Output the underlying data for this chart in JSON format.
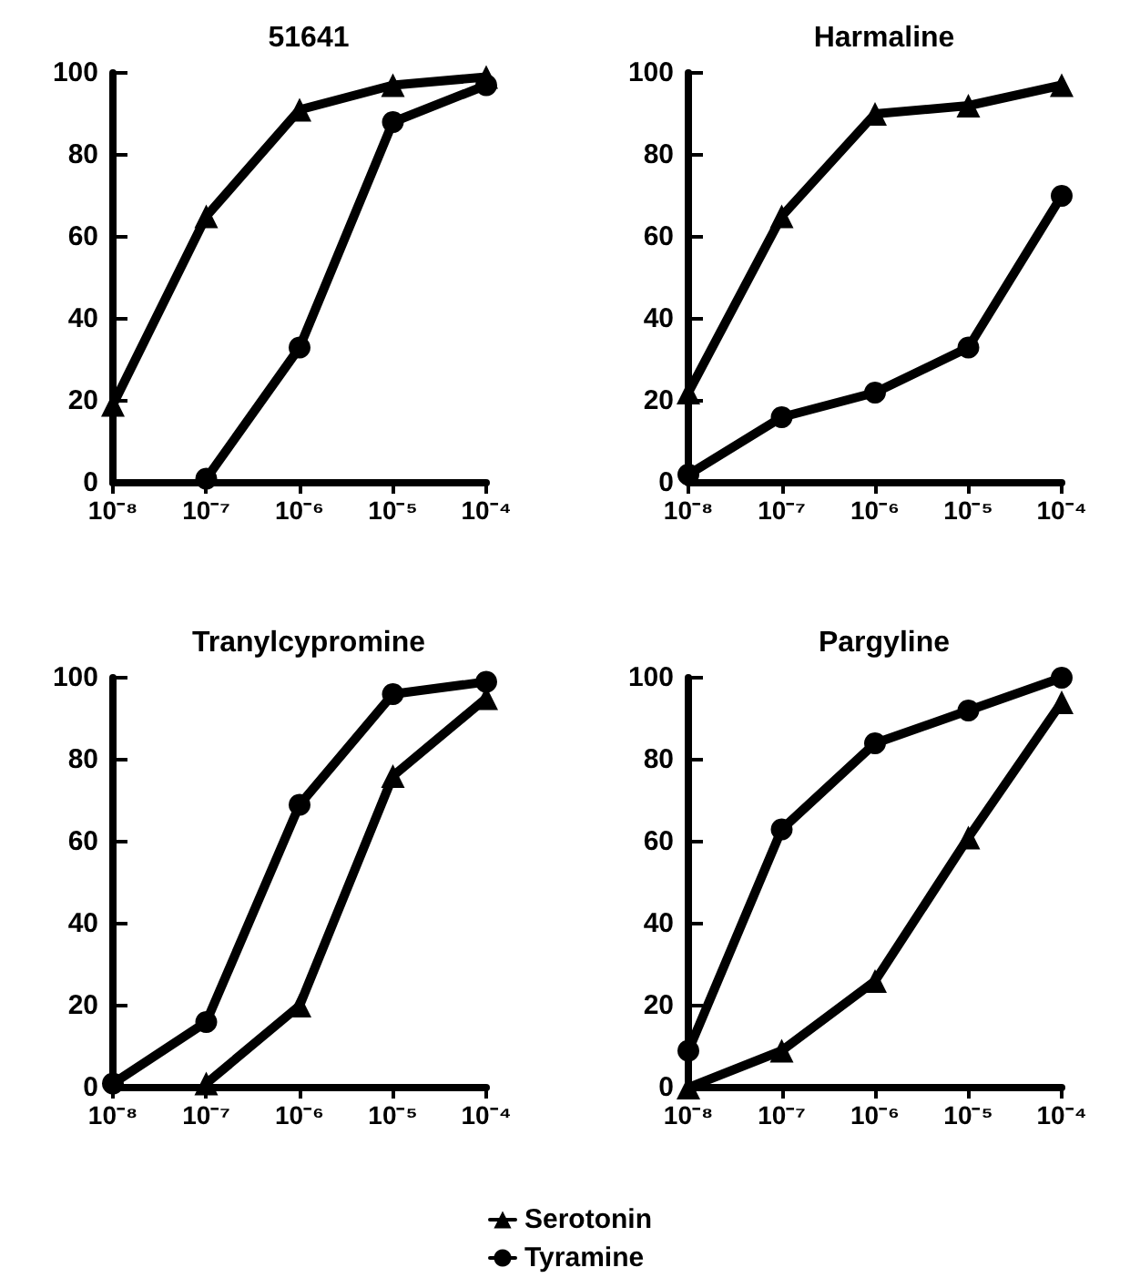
{
  "chart_data": [
    {
      "type": "line",
      "title": "51641",
      "xlim": [
        1e-08,
        0.0001
      ],
      "log": "x",
      "ylim": [
        0,
        100
      ],
      "yticks": [
        0,
        20,
        40,
        60,
        80,
        100
      ],
      "xticks": [
        {
          "value": 1e-08,
          "label": "10⁻⁸"
        },
        {
          "value": 1e-07,
          "label": "10⁻⁷"
        },
        {
          "value": 1e-06,
          "label": "10⁻⁶"
        },
        {
          "value": 1e-05,
          "label": "10⁻⁵"
        },
        {
          "value": 0.0001,
          "label": "10⁻⁴"
        }
      ],
      "grid": false,
      "legend": "bottom",
      "series": [
        {
          "name": "Serotonin",
          "color": "#000000",
          "marker": "triangle",
          "x": [
            1e-08,
            1e-07,
            1e-06,
            1e-05,
            0.0001
          ],
          "values": [
            19,
            65,
            91,
            97,
            99
          ]
        },
        {
          "name": "Tyramine",
          "color": "#000000",
          "marker": "circle",
          "x": [
            1e-07,
            1e-06,
            1e-05,
            0.0001
          ],
          "values": [
            1,
            33,
            88,
            97
          ]
        }
      ]
    },
    {
      "type": "line",
      "title": "Harmaline",
      "xlim": [
        1e-08,
        0.0001
      ],
      "log": "x",
      "ylim": [
        0,
        100
      ],
      "yticks": [
        0,
        20,
        40,
        60,
        80,
        100
      ],
      "xticks": [
        {
          "value": 1e-08,
          "label": "10⁻⁸"
        },
        {
          "value": 1e-07,
          "label": "10⁻⁷"
        },
        {
          "value": 1e-06,
          "label": "10⁻⁶"
        },
        {
          "value": 1e-05,
          "label": "10⁻⁵"
        },
        {
          "value": 0.0001,
          "label": "10⁻⁴"
        }
      ],
      "grid": false,
      "legend": "bottom",
      "series": [
        {
          "name": "Serotonin",
          "color": "#000000",
          "marker": "triangle",
          "x": [
            1e-08,
            1e-07,
            1e-06,
            1e-05,
            0.0001
          ],
          "values": [
            22,
            65,
            90,
            92,
            97
          ]
        },
        {
          "name": "Tyramine",
          "color": "#000000",
          "marker": "circle",
          "x": [
            1e-08,
            1e-07,
            1e-06,
            1e-05,
            0.0001
          ],
          "values": [
            2,
            16,
            22,
            33,
            70
          ]
        }
      ]
    },
    {
      "type": "line",
      "title": "Tranylcypromine",
      "xlim": [
        1e-08,
        0.0001
      ],
      "log": "x",
      "ylim": [
        0,
        100
      ],
      "yticks": [
        0,
        20,
        40,
        60,
        80,
        100
      ],
      "xticks": [
        {
          "value": 1e-08,
          "label": "10⁻⁸"
        },
        {
          "value": 1e-07,
          "label": "10⁻⁷"
        },
        {
          "value": 1e-06,
          "label": "10⁻⁶"
        },
        {
          "value": 1e-05,
          "label": "10⁻⁵"
        },
        {
          "value": 0.0001,
          "label": "10⁻⁴"
        }
      ],
      "grid": false,
      "legend": "bottom",
      "series": [
        {
          "name": "Serotonin",
          "color": "#000000",
          "marker": "triangle",
          "x": [
            1e-07,
            1e-06,
            1e-05,
            0.0001
          ],
          "values": [
            1,
            20,
            76,
            95
          ]
        },
        {
          "name": "Tyramine",
          "color": "#000000",
          "marker": "circle",
          "x": [
            1e-08,
            1e-07,
            1e-06,
            1e-05,
            0.0001
          ],
          "values": [
            1,
            16,
            69,
            96,
            99
          ]
        }
      ]
    },
    {
      "type": "line",
      "title": "Pargyline",
      "xlim": [
        1e-08,
        0.0001
      ],
      "log": "x",
      "ylim": [
        0,
        100
      ],
      "yticks": [
        0,
        20,
        40,
        60,
        80,
        100
      ],
      "xticks": [
        {
          "value": 1e-08,
          "label": "10⁻⁸"
        },
        {
          "value": 1e-07,
          "label": "10⁻⁷"
        },
        {
          "value": 1e-06,
          "label": "10⁻⁶"
        },
        {
          "value": 1e-05,
          "label": "10⁻⁵"
        },
        {
          "value": 0.0001,
          "label": "10⁻⁴"
        }
      ],
      "grid": false,
      "legend": "bottom",
      "series": [
        {
          "name": "Serotonin",
          "color": "#000000",
          "marker": "triangle",
          "x": [
            1e-08,
            1e-07,
            1e-06,
            1e-05,
            0.0001
          ],
          "values": [
            0,
            9,
            26,
            61,
            94
          ]
        },
        {
          "name": "Tyramine",
          "color": "#000000",
          "marker": "circle",
          "x": [
            1e-08,
            1e-07,
            1e-06,
            1e-05,
            0.0001
          ],
          "values": [
            9,
            63,
            84,
            92,
            100
          ]
        }
      ]
    }
  ]
}
